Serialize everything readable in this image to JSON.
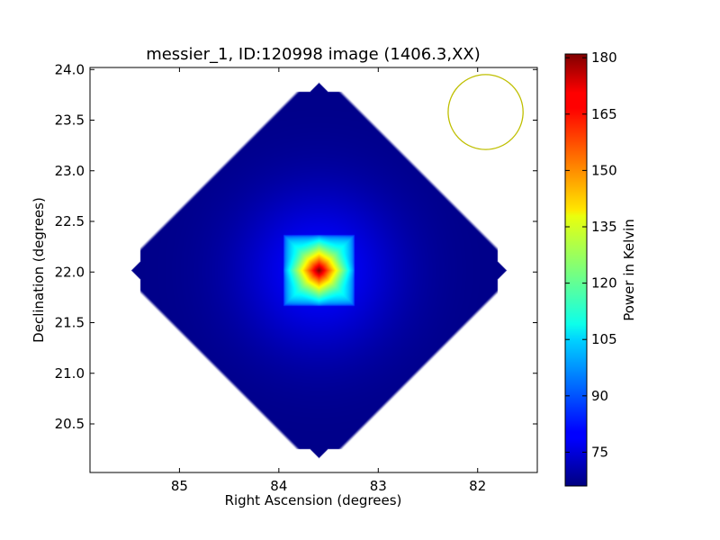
{
  "chart_data": {
    "type": "heatmap",
    "title": "messier_1, ID:120998 image (1406.3,XX)",
    "xlabel": "Right Ascension (degrees)",
    "ylabel": "Declination (degrees)",
    "xlim": [
      85.9,
      81.4
    ],
    "ylim": [
      20.02,
      24.02
    ],
    "x_ticks": [
      {
        "value": 85,
        "label": "85"
      },
      {
        "value": 84,
        "label": "84"
      },
      {
        "value": 83,
        "label": "83"
      },
      {
        "value": 82,
        "label": "82"
      }
    ],
    "y_ticks": [
      {
        "value": 20.5,
        "label": "20.5"
      },
      {
        "value": 21.0,
        "label": "21.0"
      },
      {
        "value": 21.5,
        "label": "21.5"
      },
      {
        "value": 22.0,
        "label": "22.0"
      },
      {
        "value": 22.5,
        "label": "22.5"
      },
      {
        "value": 23.0,
        "label": "23.0"
      },
      {
        "value": 23.5,
        "label": "23.5"
      },
      {
        "value": 24.0,
        "label": "24.0"
      }
    ],
    "colormap": "jet",
    "colorbar": {
      "label": "Power in Kelvin",
      "min": 66,
      "max": 181,
      "ticks": [
        {
          "value": 75,
          "label": "75"
        },
        {
          "value": 90,
          "label": "90"
        },
        {
          "value": 105,
          "label": "105"
        },
        {
          "value": 120,
          "label": "120"
        },
        {
          "value": 135,
          "label": "135"
        },
        {
          "value": 150,
          "label": "150"
        },
        {
          "value": 165,
          "label": "165"
        },
        {
          "value": 180,
          "label": "180"
        }
      ]
    },
    "source": {
      "center_ra": 83.6,
      "center_dec": 22.02,
      "background_value": 67,
      "peak_value": 181,
      "core_half_width_deg": 0.35
    },
    "footprint": {
      "shape": "diamond",
      "center_ra": 83.6,
      "center_dec": 22.02,
      "half_extent_dec": 1.98
    },
    "beam": {
      "center_ra": 81.92,
      "center_dec": 23.58,
      "radius_dec": 0.37,
      "color": "#bfbf00"
    }
  }
}
